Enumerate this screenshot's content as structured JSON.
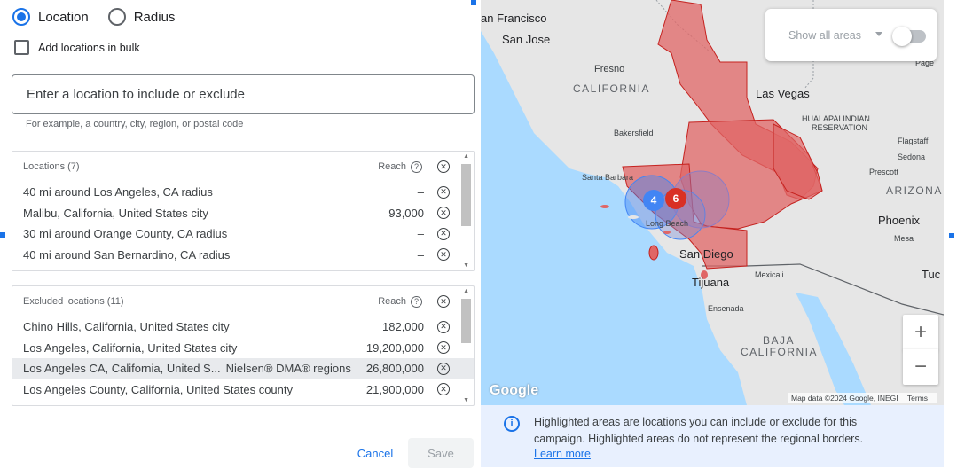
{
  "targeting": {
    "options": [
      "Location",
      "Radius"
    ],
    "selected": "Location",
    "bulk_label": "Add locations in bulk"
  },
  "search": {
    "placeholder": "Enter a location to include or exclude",
    "hint": "For example, a country, city, region, or postal code"
  },
  "included": {
    "title": "Locations (7)",
    "reach_label": "Reach",
    "rows": [
      {
        "name": "40 mi around Los Angeles, CA radius",
        "value": "–"
      },
      {
        "name": "Malibu, California, United States city",
        "value": "93,000"
      },
      {
        "name": "30 mi around Orange County, CA radius",
        "value": "–"
      },
      {
        "name": "40 mi around San Bernardino, CA radius",
        "value": "–"
      }
    ]
  },
  "excluded": {
    "title": "Excluded locations (11)",
    "reach_label": "Reach",
    "rows": [
      {
        "name": "Chino Hills, California, United States city",
        "tag": "",
        "value": "182,000"
      },
      {
        "name": "Los Angeles, California, United States city",
        "tag": "",
        "value": "19,200,000"
      },
      {
        "name": "Los Angeles CA, California, United S...",
        "tag": "Nielsen® DMA® regions",
        "value": "26,800,000"
      },
      {
        "name": "Los Angeles County, California, United States county",
        "tag": "",
        "value": "21,900,000"
      }
    ]
  },
  "actions": {
    "cancel": "Cancel",
    "save": "Save"
  },
  "map": {
    "toggle_label": "Show all areas",
    "toggle_on": false,
    "clusters": [
      {
        "count": "4",
        "color": "#4285f4"
      },
      {
        "count": "6",
        "color": "#d93025"
      }
    ],
    "labels": {
      "san_francisco": "an Francisco",
      "san_jose": "San Jose",
      "fresno": "Fresno",
      "california": "CALIFORNIA",
      "las_vegas": "Las Vegas",
      "page": "Page",
      "hualapai": "HUALAPAI INDIAN",
      "reservation": "RESERVATION",
      "bakersfield": "Bakersfield",
      "flagstaff": "Flagstaff",
      "sedona": "Sedona",
      "prescott": "Prescott",
      "arizona": "ARIZONA",
      "santa_barbara": "Santa Barbara",
      "phoenix": "Phoenix",
      "mesa": "Mesa",
      "san_diego": "San Diego",
      "tijuana": "Tijuana",
      "mexicali": "Mexicali",
      "tucson": "Tuc",
      "ensenada": "Ensenada",
      "baja": "BAJA",
      "baja2": "CALIFORNIA",
      "long_beach": "Long Beach"
    },
    "zoom_in": "+",
    "zoom_out": "−",
    "logo": "Google",
    "attribution": "Map data ©2024 Google, INEGI",
    "terms": "Terms",
    "colors": {
      "water": "#aadaff",
      "land": "#e6e6e6",
      "area_fill": "#e06666",
      "area_stroke": "#c5221f"
    }
  },
  "info": {
    "text": "Highlighted areas are locations you can include or exclude for this campaign. Highlighted areas do not represent the regional borders.",
    "link": "Learn more"
  }
}
